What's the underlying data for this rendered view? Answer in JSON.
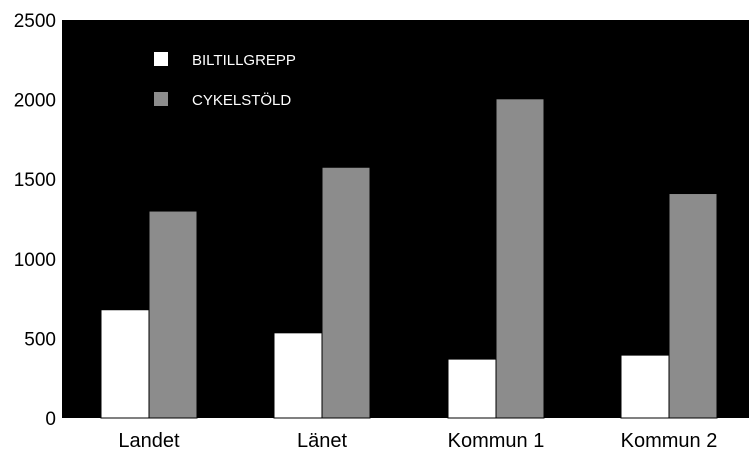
{
  "chart_data": {
    "type": "bar",
    "categories": [
      "Landet",
      "Länet",
      "Kommun 1",
      "Kommun 2"
    ],
    "series": [
      {
        "name": "BILTILLGREPP",
        "values": [
          680,
          535,
          370,
          395
        ],
        "color": "#ffffff"
      },
      {
        "name": "CYKELSTÖLD",
        "values": [
          1300,
          1575,
          2005,
          1410
        ],
        "color": "#8c8c8c"
      }
    ],
    "ylim": [
      0,
      2500
    ],
    "yticks": [
      "0",
      "500",
      "1000",
      "1500",
      "2000",
      "2500"
    ],
    "grid": false,
    "legend": "top-left",
    "plot_background": "#000000",
    "title": "",
    "xlabel": "",
    "ylabel": ""
  }
}
